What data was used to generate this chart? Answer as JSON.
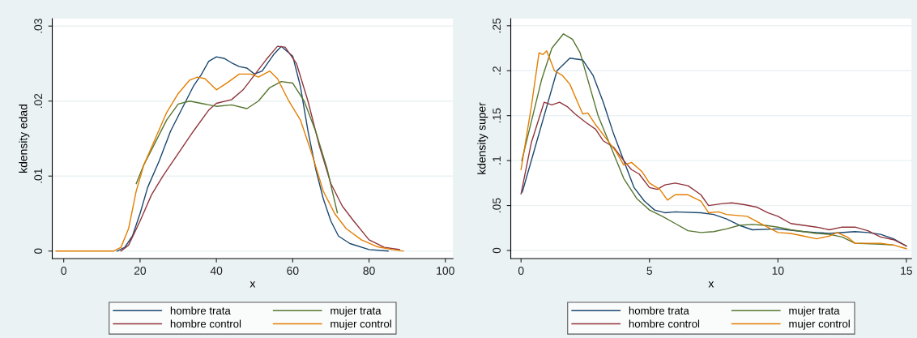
{
  "chart_data": [
    {
      "type": "line",
      "xlabel": "x",
      "ylabel": "kdensity edad",
      "xlim": [
        -3,
        102
      ],
      "ylim": [
        -0.001,
        0.031
      ],
      "xticks": [
        0,
        20,
        40,
        60,
        80,
        100
      ],
      "yticks": [
        {
          "value": 0,
          "label": "0"
        },
        {
          "value": 0.01,
          "label": ".01"
        },
        {
          "value": 0.02,
          "label": ".02"
        },
        {
          "value": 0.03,
          "label": ".03"
        }
      ],
      "grid": "y",
      "legend": "bottom",
      "marker": "none",
      "line_style": "solid",
      "series": [
        {
          "name": "hombre trata",
          "color": "#1a476f",
          "x": [
            14,
            16,
            18,
            20,
            22,
            25,
            28,
            31,
            34,
            36,
            38,
            40,
            42,
            44,
            46,
            48,
            50,
            52,
            55,
            57,
            60,
            62,
            64,
            66,
            68,
            70,
            72,
            75,
            80,
            85
          ],
          "values": [
            0,
            0.0005,
            0.002,
            0.005,
            0.0085,
            0.012,
            0.016,
            0.019,
            0.022,
            0.0235,
            0.0253,
            0.0259,
            0.0257,
            0.0251,
            0.0246,
            0.0244,
            0.0236,
            0.024,
            0.0262,
            0.0273,
            0.026,
            0.022,
            0.016,
            0.011,
            0.007,
            0.004,
            0.002,
            0.001,
            0.0002,
            0
          ]
        },
        {
          "name": "hombre control",
          "color": "#90353b",
          "x": [
            15,
            17,
            20,
            23,
            26,
            30,
            34,
            38,
            40,
            44,
            47,
            50,
            53,
            56,
            58,
            61,
            64,
            67,
            70,
            73,
            76,
            80,
            84,
            88
          ],
          "values": [
            0,
            0.0008,
            0.004,
            0.0075,
            0.01,
            0.013,
            0.016,
            0.0188,
            0.0197,
            0.0202,
            0.0215,
            0.0235,
            0.0255,
            0.0273,
            0.0272,
            0.025,
            0.02,
            0.014,
            0.009,
            0.006,
            0.004,
            0.0015,
            0.0005,
            0.0002
          ]
        },
        {
          "name": "mujer trata",
          "color": "#55752f",
          "x": [
            19,
            21,
            24,
            27,
            30,
            33,
            36,
            40,
            44,
            48,
            51,
            54,
            57,
            60,
            63,
            66,
            69,
            71.7
          ],
          "values": [
            0.009,
            0.0115,
            0.0145,
            0.0175,
            0.0196,
            0.02,
            0.0197,
            0.0193,
            0.0195,
            0.019,
            0.02,
            0.0218,
            0.0226,
            0.0224,
            0.02,
            0.016,
            0.011,
            0.0051
          ]
        },
        {
          "name": "mujer control",
          "color": "#e37e00",
          "x": [
            -2,
            13,
            15,
            17,
            19,
            21,
            24,
            27,
            30,
            33,
            35,
            37,
            40,
            43,
            46,
            49,
            51,
            54,
            56,
            59,
            62,
            65,
            68,
            71,
            74,
            78,
            82,
            86,
            89
          ],
          "values": [
            0,
            0,
            0.0005,
            0.003,
            0.008,
            0.0115,
            0.015,
            0.0185,
            0.021,
            0.0228,
            0.0232,
            0.023,
            0.0215,
            0.0225,
            0.0236,
            0.0236,
            0.0232,
            0.024,
            0.023,
            0.02,
            0.0175,
            0.013,
            0.008,
            0.005,
            0.003,
            0.0015,
            0.0006,
            0.0002,
            0
          ]
        }
      ]
    },
    {
      "type": "line",
      "xlabel": "x",
      "ylabel": "kdensity super",
      "xlim": [
        -0.4,
        15.2
      ],
      "ylim": [
        -0.009,
        0.258
      ],
      "xticks": [
        0,
        5,
        10,
        15
      ],
      "yticks": [
        {
          "value": 0,
          "label": "0"
        },
        {
          "value": 0.05,
          "label": ".05"
        },
        {
          "value": 0.1,
          "label": ".1"
        },
        {
          "value": 0.15,
          "label": ".15"
        },
        {
          "value": 0.2,
          "label": ".2"
        },
        {
          "value": 0.25,
          "label": ".25"
        }
      ],
      "grid": "y",
      "legend": "bottom",
      "marker": "none",
      "line_style": "solid",
      "series": [
        {
          "name": "hombre trata",
          "color": "#1a476f",
          "x": [
            0.05,
            0.5,
            1.0,
            1.4,
            1.9,
            2.4,
            2.8,
            3.2,
            3.6,
            4.0,
            4.4,
            4.8,
            5.2,
            5.6,
            6,
            7,
            7.5,
            8,
            8.5,
            9,
            10,
            11,
            11.5,
            12,
            13,
            13.5,
            14,
            14.5,
            15
          ],
          "values": [
            0.065,
            0.11,
            0.16,
            0.2,
            0.214,
            0.212,
            0.195,
            0.165,
            0.13,
            0.1,
            0.07,
            0.055,
            0.045,
            0.042,
            0.043,
            0.042,
            0.04,
            0.035,
            0.028,
            0.023,
            0.024,
            0.021,
            0.02,
            0.019,
            0.021,
            0.02,
            0.018,
            0.013,
            0.005
          ]
        },
        {
          "name": "hombre control",
          "color": "#90353b",
          "x": [
            0,
            0.4,
            0.9,
            1.2,
            1.5,
            1.8,
            2.1,
            2.5,
            2.9,
            3.2,
            3.6,
            4.0,
            4.3,
            4.6,
            5.0,
            5.3,
            5.6,
            6.0,
            6.5,
            7.0,
            7.3,
            7.8,
            8.2,
            8.7,
            9.2,
            9.6,
            10.0,
            10.5,
            11,
            11.5,
            12,
            12.5,
            13,
            13.5,
            14,
            14.5,
            15
          ],
          "values": [
            0.063,
            0.12,
            0.165,
            0.162,
            0.165,
            0.16,
            0.152,
            0.143,
            0.135,
            0.122,
            0.115,
            0.1,
            0.09,
            0.085,
            0.07,
            0.068,
            0.073,
            0.075,
            0.072,
            0.062,
            0.05,
            0.052,
            0.053,
            0.051,
            0.048,
            0.042,
            0.038,
            0.03,
            0.028,
            0.026,
            0.023,
            0.026,
            0.026,
            0.022,
            0.015,
            0.012,
            0.005
          ]
        },
        {
          "name": "mujer trata",
          "color": "#55752f",
          "x": [
            0.03,
            0.5,
            0.8,
            1.2,
            1.65,
            2.0,
            2.3,
            2.6,
            3.0,
            3.5,
            4.0,
            4.5,
            5.0,
            5.5,
            6.0,
            6.5,
            7.0,
            7.5,
            8.0,
            8.5,
            9.0,
            9.5,
            10,
            10.5,
            11,
            11.5,
            12,
            12.5,
            13,
            14,
            14.5
          ],
          "values": [
            0.1,
            0.155,
            0.19,
            0.225,
            0.241,
            0.235,
            0.22,
            0.19,
            0.15,
            0.115,
            0.08,
            0.058,
            0.045,
            0.038,
            0.03,
            0.022,
            0.02,
            0.021,
            0.024,
            0.028,
            0.029,
            0.028,
            0.026,
            0.023,
            0.021,
            0.019,
            0.018,
            0.015,
            0.008,
            0.007,
            0.006
          ]
        },
        {
          "name": "mujer control",
          "color": "#e37e00",
          "x": [
            0,
            0.4,
            0.7,
            0.85,
            1.0,
            1.3,
            1.6,
            1.9,
            2.2,
            2.4,
            2.6,
            2.9,
            3.3,
            3.7,
            4.0,
            4.3,
            4.7,
            5.0,
            5.4,
            5.7,
            6.0,
            6.5,
            7.0,
            7.3,
            7.7,
            8.0,
            8.8,
            9.2,
            10,
            10.5,
            11,
            11.5,
            12,
            12.3,
            12.7,
            13,
            14,
            14.5,
            15
          ],
          "values": [
            0.09,
            0.16,
            0.22,
            0.218,
            0.222,
            0.2,
            0.195,
            0.185,
            0.165,
            0.152,
            0.153,
            0.14,
            0.125,
            0.11,
            0.095,
            0.098,
            0.088,
            0.075,
            0.068,
            0.056,
            0.062,
            0.062,
            0.055,
            0.042,
            0.043,
            0.04,
            0.038,
            0.032,
            0.02,
            0.019,
            0.016,
            0.013,
            0.016,
            0.02,
            0.015,
            0.008,
            0.008,
            0.006,
            0.002
          ]
        }
      ]
    }
  ]
}
